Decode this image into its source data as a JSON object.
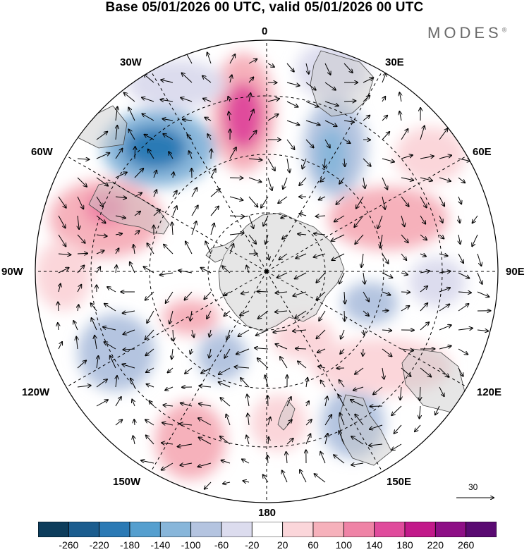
{
  "title": "Base 05/01/2026 00 UTC, valid 05/01/2026 00 UTC",
  "brand": "MODES",
  "brand_mark": "®",
  "map": {
    "projection": "south polar stereographic",
    "longitude_labels": {
      "top": "0",
      "top_left": "30W",
      "top_right": "30E",
      "upper_left": "60W",
      "upper_right": "60E",
      "left": "90W",
      "right": "90E",
      "lower_left": "120W",
      "lower_right": "120E",
      "bottom_left": "150W",
      "bottom_right": "150E",
      "bottom": "180"
    },
    "reference_vector_label": "30"
  },
  "colorbar": {
    "colors": [
      "#0d3d5c",
      "#1b5d8f",
      "#2b7ab5",
      "#559fcf",
      "#88b6da",
      "#b4c4e0",
      "#dcdcee",
      "#ffffff",
      "#fbd6da",
      "#f6b1bb",
      "#ef83a6",
      "#e04b9c",
      "#c2198a",
      "#8e0f86",
      "#5a0a72"
    ],
    "tick_labels": [
      "-260",
      "-220",
      "-180",
      "-140",
      "-100",
      "-60",
      "-20",
      "20",
      "60",
      "100",
      "140",
      "180",
      "220",
      "260"
    ]
  }
}
